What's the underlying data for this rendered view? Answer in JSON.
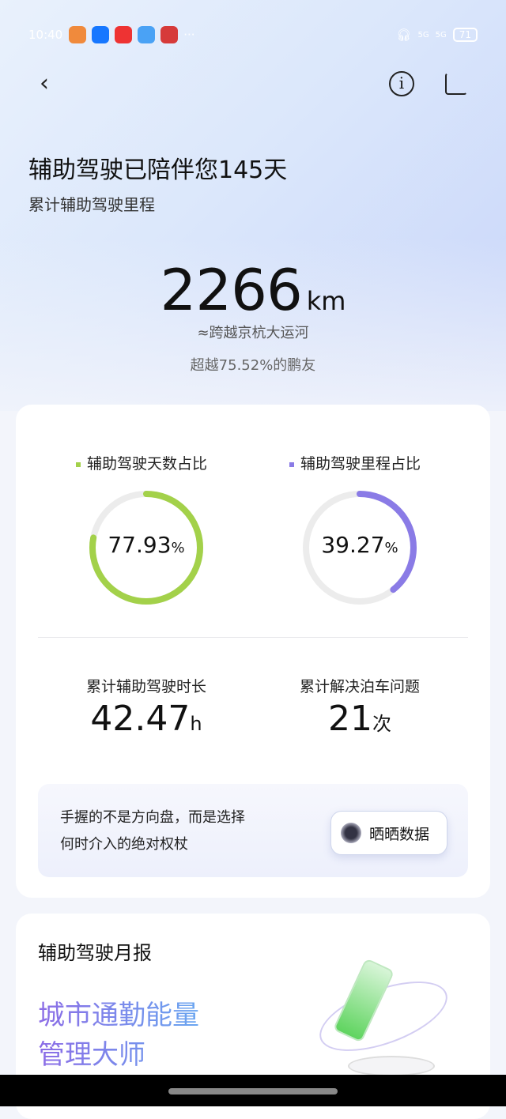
{
  "status": {
    "time": "10:40",
    "battery": "71",
    "signal1": "5G",
    "signal2": "5G",
    "more": "···"
  },
  "header": {
    "title": "辅助驾驶已陪伴您145天",
    "subtitle": "累计辅助驾驶里程"
  },
  "mileage": {
    "value": "2266",
    "unit": "km",
    "comparison": "≈跨越京杭大运河",
    "rank": "超越75.52%的鹏友"
  },
  "stats": {
    "days_ratio": {
      "label": "辅助驾驶天数占比",
      "value": "77.93",
      "unit": "%",
      "fraction": 0.7793,
      "color": "#a3d14a"
    },
    "mileage_ratio": {
      "label": "辅助驾驶里程占比",
      "value": "39.27",
      "unit": "%",
      "fraction": 0.3927,
      "color": "#8a7be6"
    },
    "duration": {
      "label": "累计辅助驾驶时长",
      "value": "42.47",
      "unit": "h"
    },
    "parking": {
      "label": "累计解决泊车问题",
      "value": "21",
      "unit": "次"
    }
  },
  "quote": {
    "line1": "手握的不是方向盘，而是选择",
    "line2": "何时介入的绝对权杖",
    "button": "晒晒数据"
  },
  "monthly": {
    "title": "辅助驾驶月报",
    "headline1": "城市通勤能量",
    "headline2": "管理大师"
  }
}
